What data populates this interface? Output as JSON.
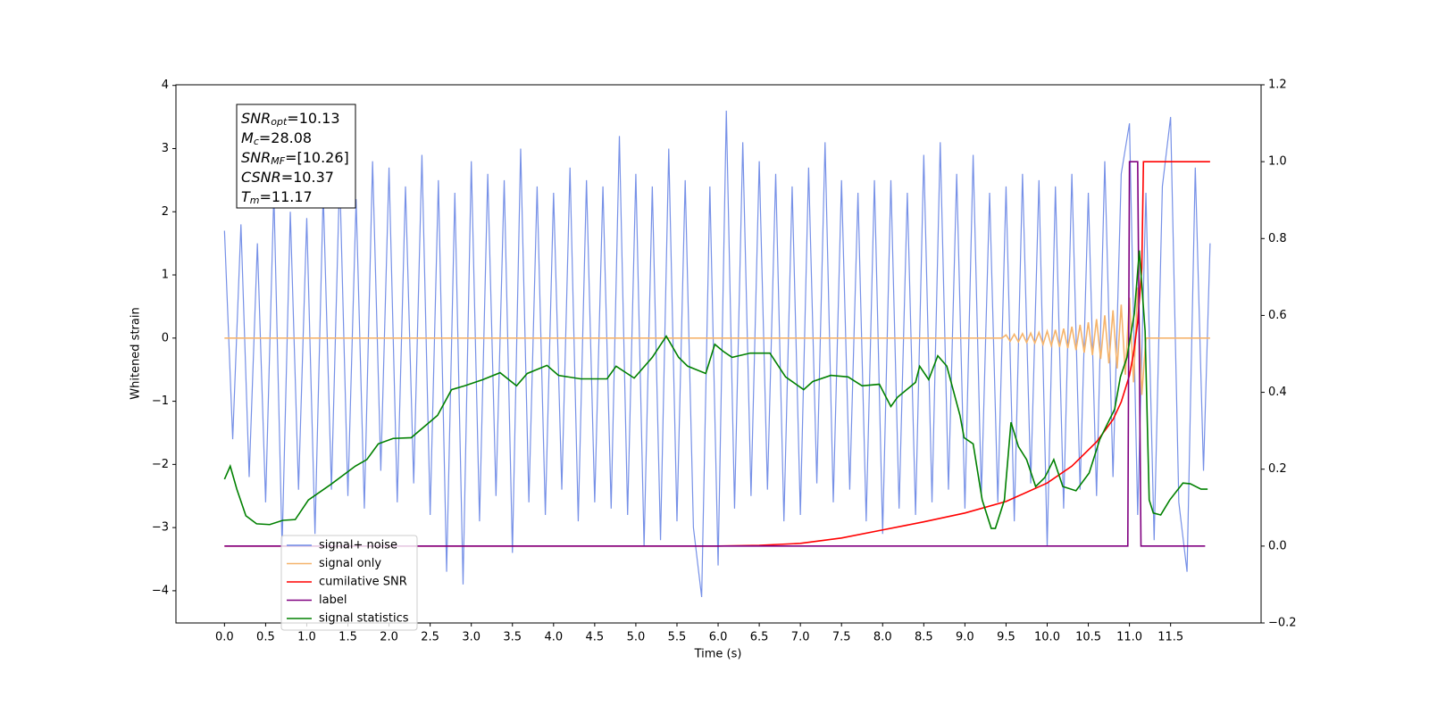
{
  "chart_data": {
    "type": "line",
    "xlabel": "Time (s)",
    "ylabel": "Whitened strain",
    "xlim": [
      -0.59,
      12.6
    ],
    "ylim": [
      -4.51,
      4.01
    ],
    "y2lim": [
      -0.2,
      1.2
    ],
    "grid": false,
    "legend": "lower left",
    "xticks": [
      {
        "value": 0,
        "label": "0.0"
      },
      0.5,
      {
        "value": 1,
        "label": "1.0"
      },
      1.5,
      {
        "value": 2,
        "label": "2.0"
      },
      2.5,
      {
        "value": 3,
        "label": "3.0"
      },
      3.5,
      {
        "value": 4,
        "label": "4.0"
      },
      4.5,
      {
        "value": 5,
        "label": "5.0"
      },
      5.5,
      {
        "value": 6,
        "label": "6.0"
      },
      6.5,
      {
        "value": 7,
        "label": "7.0"
      },
      7.5,
      {
        "value": 8,
        "label": "8.0"
      },
      8.5,
      {
        "value": 9,
        "label": "9.0"
      },
      9.5,
      {
        "value": 10,
        "label": "10.0"
      },
      10.5,
      {
        "value": 11,
        "label": "11.0"
      },
      11.5
    ],
    "yticks": [
      4,
      3,
      2,
      1,
      0,
      {
        "value": -1,
        "label": "−1"
      },
      {
        "value": -2,
        "label": "−2"
      },
      {
        "value": -3,
        "label": "−3"
      },
      {
        "value": -4,
        "label": "−4"
      }
    ],
    "y2ticks": [
      1.2,
      {
        "value": 1,
        "label": "1.0"
      },
      0.8,
      0.6,
      0.4,
      0.2,
      {
        "value": 0,
        "label": "0.0"
      },
      {
        "value": -0.2,
        "label": "−0.2"
      }
    ],
    "annotations": [
      {
        "symbol": "SNR",
        "subscript": "opt",
        "text": "=10.13"
      },
      {
        "symbol": "M",
        "subscript": "c",
        "text": "=28.08"
      },
      {
        "symbol": "SNR",
        "subscript": "MF",
        "text": "=[10.26]"
      },
      {
        "symbol": "CSNR",
        "subscript": "",
        "text": "=10.37"
      },
      {
        "symbol": "T",
        "subscript": "m",
        "text": "=11.17"
      }
    ],
    "series": [
      {
        "name": "signal+ noise",
        "color": "#6f8ae6",
        "x": [
          0,
          0.1,
          0.2,
          0.3,
          0.4,
          0.5,
          0.6,
          0.7,
          0.8,
          0.9,
          1,
          1.1,
          1.2,
          1.3,
          1.4,
          1.5,
          1.6,
          1.7,
          1.8,
          1.9,
          2,
          2.1,
          2.2,
          2.3,
          2.4,
          2.5,
          2.6,
          2.7,
          2.8,
          2.9,
          3,
          3.1,
          3.2,
          3.3,
          3.4,
          3.5,
          3.6,
          3.7,
          3.8,
          3.9,
          4,
          4.1,
          4.2,
          4.3,
          4.4,
          4.5,
          4.6,
          4.7,
          4.8,
          4.9,
          5,
          5.1,
          5.2,
          5.3,
          5.4,
          5.5,
          5.6,
          5.7,
          5.8,
          5.9,
          6,
          6.1,
          6.2,
          6.3,
          6.4,
          6.5,
          6.6,
          6.7,
          6.8,
          6.9,
          7,
          7.1,
          7.2,
          7.3,
          7.4,
          7.5,
          7.6,
          7.7,
          7.8,
          7.9,
          8,
          8.1,
          8.2,
          8.3,
          8.4,
          8.5,
          8.6,
          8.7,
          8.8,
          8.9,
          9,
          9.1,
          9.2,
          9.3,
          9.4,
          9.5,
          9.6,
          9.7,
          9.8,
          9.9,
          10,
          10.1,
          10.2,
          10.3,
          10.4,
          10.5,
          10.6,
          10.7,
          10.8,
          10.9,
          11,
          11.1,
          11.2,
          11.3,
          11.4,
          11.5,
          11.6,
          11.7,
          11.8,
          11.9,
          11.98
        ],
        "values": [
          1.7,
          -1.6,
          1.8,
          -2.2,
          1.5,
          -2.6,
          2.3,
          -3.3,
          2.0,
          -2.4,
          1.9,
          -3.1,
          2.3,
          -2.4,
          2.6,
          -2.5,
          2.2,
          -2.7,
          2.8,
          -2.1,
          2.7,
          -2.6,
          2.4,
          -2.3,
          2.9,
          -2.8,
          2.5,
          -3.7,
          2.3,
          -3.9,
          2.8,
          -2.9,
          2.6,
          -2.5,
          2.5,
          -3.4,
          3.0,
          -2.6,
          2.4,
          -2.8,
          2.3,
          -2.4,
          2.7,
          -2.9,
          2.5,
          -2.6,
          2.4,
          -2.7,
          3.2,
          -2.8,
          2.6,
          -3.3,
          2.4,
          -3.2,
          3.0,
          -2.9,
          2.5,
          -3.0,
          -4.1,
          2.4,
          -3.6,
          3.6,
          -2.7,
          3.1,
          -2.5,
          2.8,
          -2.4,
          2.6,
          -2.9,
          2.4,
          -2.8,
          2.7,
          -2.3,
          3.1,
          -2.6,
          2.5,
          -2.4,
          2.3,
          -2.9,
          2.5,
          -3.1,
          2.5,
          -2.7,
          2.3,
          -2.8,
          2.9,
          -2.6,
          3.1,
          -2.4,
          2.6,
          -2.7,
          2.9,
          -2.5,
          2.3,
          -2.6,
          2.4,
          -2.9,
          2.6,
          -2.3,
          2.5,
          -3.3,
          2.4,
          -2.7,
          2.6,
          -2.4,
          2.3,
          -2.5,
          2.8,
          -2.2,
          2.6,
          3.4,
          -2.8,
          2.3,
          -3.2,
          2.4,
          3.5,
          -2.6,
          -3.7,
          2.7,
          -2.1,
          1.5
        ]
      },
      {
        "name": "signal only",
        "color": "#f5b46c",
        "x": [
          0,
          9.45,
          9.5,
          9.55,
          9.6,
          9.65,
          9.7,
          9.75,
          9.8,
          9.85,
          9.9,
          9.95,
          10,
          10.05,
          10.1,
          10.15,
          10.2,
          10.25,
          10.3,
          10.35,
          10.4,
          10.45,
          10.5,
          10.55,
          10.6,
          10.65,
          10.7,
          10.75,
          10.8,
          10.85,
          10.9,
          10.95,
          11,
          11.05,
          11.1,
          11.15,
          11.2,
          11.98
        ],
        "values": [
          0,
          0,
          0.05,
          -0.05,
          0.06,
          -0.06,
          0.07,
          -0.07,
          0.08,
          -0.08,
          0.09,
          -0.1,
          0.11,
          -0.12,
          0.13,
          -0.14,
          0.15,
          -0.16,
          0.18,
          -0.19,
          0.21,
          -0.23,
          0.25,
          -0.27,
          0.3,
          -0.33,
          0.36,
          -0.4,
          0.44,
          -0.48,
          0.53,
          -0.58,
          0.64,
          -0.7,
          0.8,
          -0.9,
          0,
          0
        ]
      },
      {
        "name": "cumilative SNR",
        "color": "#ff0000",
        "axis": "y2",
        "x": [
          0,
          6,
          6.5,
          7,
          7.5,
          8,
          8.5,
          9,
          9.5,
          10,
          10.3,
          10.6,
          10.8,
          10.9,
          11,
          11.05,
          11.1,
          11.15,
          11.17,
          11.98
        ],
        "values": [
          0,
          0,
          0.002,
          0.007,
          0.021,
          0.042,
          0.063,
          0.086,
          0.116,
          0.164,
          0.208,
          0.271,
          0.329,
          0.375,
          0.444,
          0.502,
          0.583,
          0.722,
          1,
          1
        ]
      },
      {
        "name": "label",
        "color": "#800080",
        "axis": "y2",
        "x": [
          0,
          10.98,
          11.0,
          11.1,
          11.14,
          11.92
        ],
        "values": [
          0,
          0,
          1,
          1,
          0,
          0
        ]
      },
      {
        "name": "signal statistics",
        "color": "#008000",
        "axis": "y2",
        "x": [
          0,
          0.07,
          0.15,
          0.26,
          0.39,
          0.55,
          0.71,
          0.86,
          1.02,
          1.29,
          1.59,
          1.73,
          1.87,
          2.05,
          2.27,
          2.59,
          2.76,
          2.92,
          3.14,
          3.35,
          3.55,
          3.68,
          3.92,
          4.06,
          4.33,
          4.65,
          4.76,
          4.98,
          5.2,
          5.37,
          5.52,
          5.63,
          5.85,
          5.96,
          6.06,
          6.17,
          6.39,
          6.63,
          6.82,
          7.04,
          7.15,
          7.37,
          7.58,
          7.75,
          7.96,
          8.1,
          8.18,
          8.4,
          8.45,
          8.56,
          8.67,
          8.78,
          8.94,
          8.99,
          9.1,
          9.21,
          9.32,
          9.37,
          9.48,
          9.56,
          9.65,
          9.75,
          9.86,
          9.97,
          10.08,
          10.19,
          10.35,
          10.51,
          10.64,
          10.82,
          10.89,
          10.97,
          11.06,
          11.12,
          11.19,
          11.24,
          11.29,
          11.38,
          11.49,
          11.65,
          11.74,
          11.87,
          11.95
        ],
        "values": [
          0.174,
          0.208,
          0.148,
          0.079,
          0.058,
          0.056,
          0.067,
          0.069,
          0.12,
          0.16,
          0.208,
          0.225,
          0.266,
          0.28,
          0.282,
          0.34,
          0.407,
          0.417,
          0.433,
          0.451,
          0.417,
          0.449,
          0.47,
          0.444,
          0.435,
          0.435,
          0.468,
          0.437,
          0.491,
          0.546,
          0.491,
          0.468,
          0.449,
          0.525,
          0.507,
          0.491,
          0.502,
          0.502,
          0.44,
          0.407,
          0.428,
          0.444,
          0.44,
          0.417,
          0.421,
          0.363,
          0.387,
          0.426,
          0.468,
          0.433,
          0.495,
          0.468,
          0.34,
          0.282,
          0.266,
          0.12,
          0.046,
          0.046,
          0.12,
          0.322,
          0.259,
          0.225,
          0.155,
          0.178,
          0.225,
          0.155,
          0.144,
          0.19,
          0.278,
          0.356,
          0.44,
          0.491,
          0.606,
          0.769,
          0.56,
          0.12,
          0.086,
          0.081,
          0.12,
          0.164,
          0.162,
          0.148,
          0.148
        ]
      }
    ]
  }
}
